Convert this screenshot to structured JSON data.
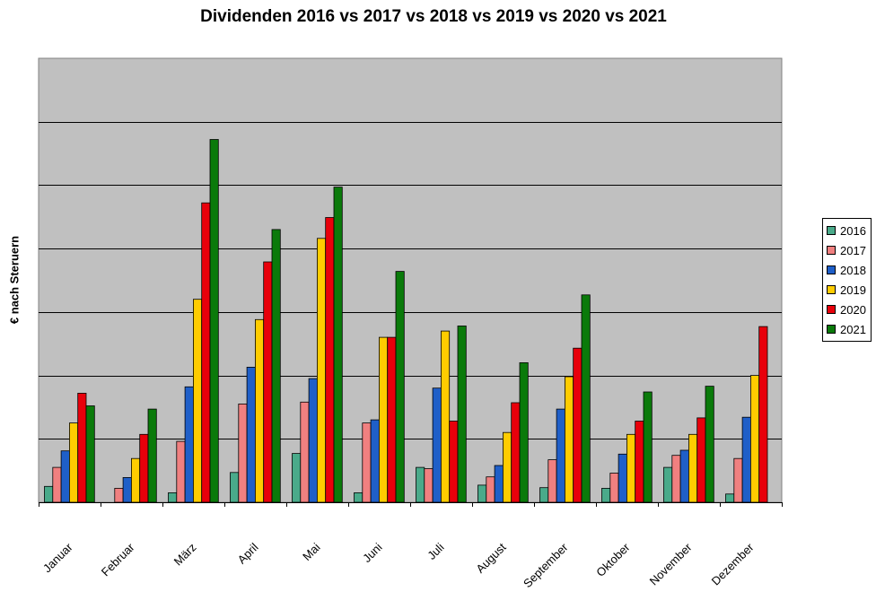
{
  "chart_data": {
    "type": "bar",
    "title": "Dividenden 2016 vs 2017 vs 2018 vs 2019 vs 2020 vs 2021",
    "xlabel": "",
    "ylabel": "€ nach Steruern",
    "ylim": [
      0,
      7
    ],
    "grid": true,
    "legend_position": "right",
    "plot_background": "#c0c0c0",
    "categories": [
      "Januar",
      "Februar",
      "März",
      "April",
      "Mai",
      "Juni",
      "Juli",
      "August",
      "September",
      "Oktober",
      "November",
      "Dezember"
    ],
    "series": [
      {
        "name": "2016",
        "color": "#4aaa8a",
        "values": [
          0.25,
          0.0,
          0.15,
          0.47,
          0.77,
          0.15,
          0.55,
          0.27,
          0.23,
          0.22,
          0.55,
          0.13
        ]
      },
      {
        "name": "2017",
        "color": "#f08080",
        "values": [
          0.55,
          0.22,
          0.96,
          1.55,
          1.58,
          1.25,
          0.53,
          0.4,
          0.67,
          0.46,
          0.74,
          0.69
        ]
      },
      {
        "name": "2018",
        "color": "#1f5fc8",
        "values": [
          0.81,
          0.39,
          1.82,
          2.13,
          1.95,
          1.3,
          1.8,
          0.58,
          1.47,
          0.76,
          0.82,
          1.34
        ]
      },
      {
        "name": "2019",
        "color": "#ffcc00",
        "values": [
          1.25,
          0.69,
          3.2,
          2.88,
          4.16,
          2.6,
          2.7,
          1.1,
          1.98,
          1.07,
          1.07,
          2.0
        ]
      },
      {
        "name": "2020",
        "color": "#e8000b",
        "values": [
          1.72,
          1.07,
          4.72,
          3.79,
          4.49,
          2.6,
          1.28,
          1.57,
          2.43,
          1.28,
          1.33,
          2.77
        ]
      },
      {
        "name": "2021",
        "color": "#0a7a0a",
        "values": [
          1.52,
          1.47,
          5.72,
          4.3,
          4.97,
          3.64,
          2.78,
          2.2,
          3.27,
          1.74,
          1.83,
          0.0
        ]
      }
    ]
  }
}
